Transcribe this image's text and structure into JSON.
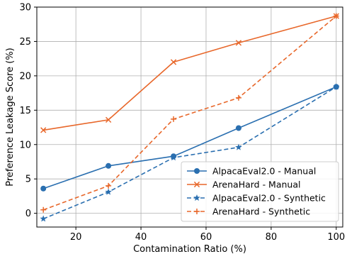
{
  "chart_data": {
    "type": "line",
    "title": "",
    "xlabel": "Contamination Ratio (%)",
    "ylabel": "Preference Leakage Score (%)",
    "xlim": [
      8,
      102
    ],
    "ylim": [
      -2,
      30
    ],
    "xticks": [
      20,
      40,
      60,
      80,
      100
    ],
    "yticks": [
      0,
      5,
      10,
      15,
      20,
      25,
      30
    ],
    "grid": true,
    "legend_position": "lower-right",
    "x": [
      10,
      30,
      50,
      70,
      100
    ],
    "series": [
      {
        "name": "AlpacaEval2.0 - Manual",
        "values": [
          3.6,
          6.9,
          8.3,
          12.4,
          18.4
        ],
        "color": "#2a6fb0",
        "linestyle": "solid",
        "marker": "circle"
      },
      {
        "name": "ArenaHard - Manual",
        "values": [
          12.1,
          13.6,
          22.0,
          24.8,
          28.7
        ],
        "color": "#e8672a",
        "linestyle": "solid",
        "marker": "x"
      },
      {
        "name": "AlpacaEval2.0 - Synthetic",
        "values": [
          -0.8,
          3.1,
          8.1,
          9.6,
          18.4
        ],
        "color": "#2a6fb0",
        "linestyle": "dashed",
        "marker": "star"
      },
      {
        "name": "ArenaHard - Synthetic",
        "values": [
          0.5,
          4.0,
          13.7,
          16.8,
          28.7
        ],
        "color": "#e8672a",
        "linestyle": "dashed",
        "marker": "plus"
      }
    ]
  }
}
